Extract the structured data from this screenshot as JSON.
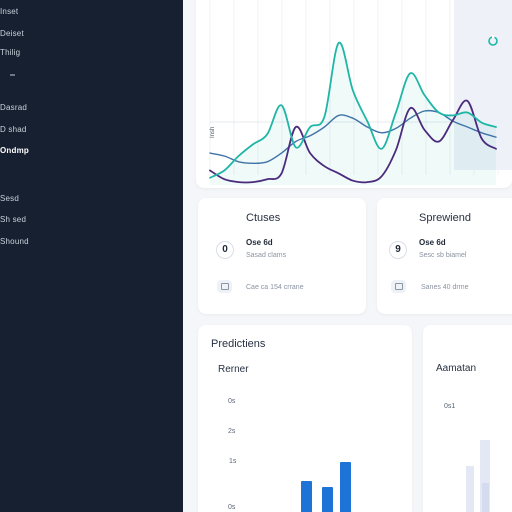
{
  "sidebar": {
    "items": [
      {
        "label": "Inset"
      },
      {
        "label": "Deiset"
      },
      {
        "label": "Thilig"
      },
      {
        "label": "Dasrad"
      },
      {
        "label": "D shad"
      },
      {
        "label": "Ondmp"
      },
      {
        "label": "Sesd"
      },
      {
        "label": "Sh sed"
      },
      {
        "label": "Shound"
      }
    ],
    "active_index": 5
  },
  "trend_chart": {
    "y_label": "Insh",
    "colors": {
      "teal": "#1fb6a6",
      "purple": "#4b2a7c",
      "blue": "#3f73a8"
    }
  },
  "card_a": {
    "title": "Ctuses",
    "metric_icon": "0",
    "metric_value": "Ose 6d",
    "metric_sub": "Sasad clams",
    "footer_icon": "calendar-icon",
    "footer_text": "Cae ca  154  crrane"
  },
  "card_b": {
    "title": "Sprewiend",
    "metric_icon": "9",
    "metric_value": "Ose 6d",
    "metric_sub": "Sesc sb biamel",
    "footer_icon": "monitor-icon",
    "footer_text": "Sanes  40  drme"
  },
  "predictions": {
    "title": "Predictiens",
    "subtitle": "Rerner",
    "colors": {
      "bar": "#1d74d6"
    }
  },
  "right_panel": {
    "subtitle": "Aamatan",
    "tick": "0s1"
  },
  "chart_data": [
    {
      "type": "line",
      "title": "",
      "ylabel": "Insh",
      "x": [
        0,
        1,
        2,
        3,
        4,
        5,
        6,
        7,
        8,
        9,
        10,
        11,
        12,
        13,
        14,
        15,
        16,
        17,
        18,
        19,
        20
      ],
      "ylim": [
        0,
        10
      ],
      "grid": true,
      "series": [
        {
          "name": "",
          "color": "#1fb6a6",
          "values": [
            0.5,
            1.0,
            2.0,
            2.8,
            3.5,
            5.5,
            2.6,
            4.0,
            4.7,
            9.8,
            6.5,
            4.4,
            2.5,
            5.0,
            7.7,
            6.2,
            5.0,
            4.8,
            5.0,
            4.3,
            4.0
          ]
        },
        {
          "name": "",
          "color": "#4b2a7c",
          "values": [
            1.0,
            0.4,
            0.2,
            0.2,
            0.4,
            0.8,
            4.0,
            2.2,
            1.3,
            0.8,
            0.3,
            0.2,
            0.6,
            2.4,
            5.3,
            3.8,
            3.0,
            4.5,
            5.8,
            3.2,
            2.5
          ]
        },
        {
          "name": "",
          "color": "#3f73a8",
          "values": [
            2.2,
            2.0,
            1.6,
            1.5,
            1.6,
            2.2,
            3.0,
            3.4,
            4.0,
            4.8,
            4.6,
            4.0,
            3.6,
            3.9,
            4.6,
            5.1,
            5.0,
            4.4,
            4.0,
            3.6,
            3.3
          ]
        }
      ]
    },
    {
      "type": "bar",
      "title": "Predictiens",
      "subtitle": "Rerner",
      "ylabel": "",
      "tick_labels": [
        "0s",
        "2s",
        "1s",
        "0s"
      ],
      "ylim": [
        0,
        90
      ],
      "categories": [
        "",
        "",
        ""
      ],
      "values": [
        25,
        20,
        40
      ]
    }
  ]
}
